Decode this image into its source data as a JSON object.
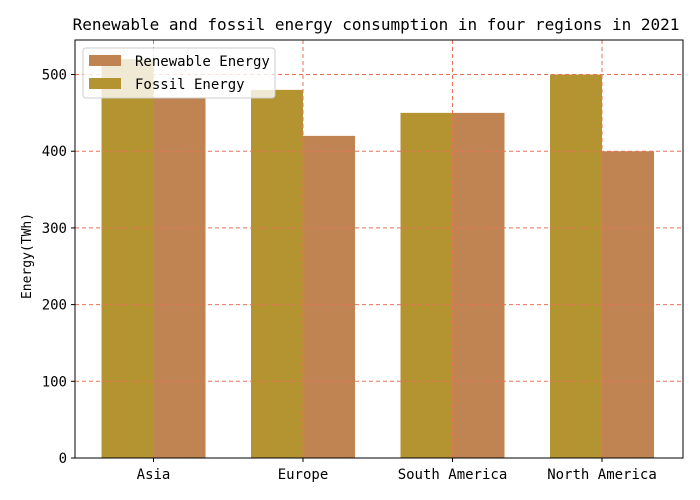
{
  "chart_data": {
    "type": "bar",
    "title": "Renewable and fossil energy consumption in four regions in 2021",
    "xlabel": "",
    "ylabel": "Energy(TWh)",
    "categories": [
      "Asia",
      "Europe",
      "South America",
      "North America"
    ],
    "series": [
      {
        "name": "Renewable Energy",
        "values": [
          470,
          420,
          450,
          400
        ],
        "color": "#bf8452"
      },
      {
        "name": "Fossil Energy",
        "values": [
          520,
          480,
          450,
          500
        ],
        "color": "#b39430"
      }
    ],
    "ylim": [
      0,
      545
    ],
    "yticks": [
      0,
      100,
      200,
      300,
      400,
      500
    ],
    "grid": true,
    "grid_color": "#e8735a",
    "legend_position": "top-left"
  }
}
